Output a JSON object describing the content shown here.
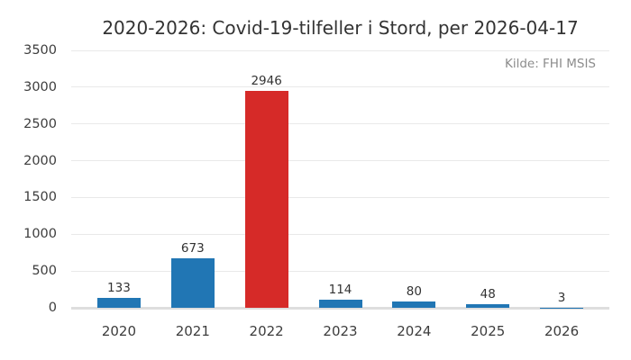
{
  "chart_data": {
    "type": "bar",
    "title": "2020-2026: Covid-19-tilfeller i Stord, per 2026-04-17",
    "source_note": "Kilde: FHI MSIS",
    "categories": [
      "2020",
      "2021",
      "2022",
      "2023",
      "2024",
      "2025",
      "2026"
    ],
    "values": [
      133,
      673,
      2946,
      114,
      80,
      48,
      3
    ],
    "value_labels": [
      "133",
      "673",
      "2946",
      "114",
      "80",
      "48",
      "3"
    ],
    "highlight_index": 2,
    "bar_color": "#2176b4",
    "highlight_color": "#d62a28",
    "xlabel": "",
    "ylabel": "",
    "ylim": [
      0,
      3500
    ],
    "yticks": [
      0,
      500,
      1000,
      1500,
      2000,
      2500,
      3000,
      3500
    ],
    "grid": "horizontal",
    "legend": "none",
    "value_labels_shown": true
  }
}
